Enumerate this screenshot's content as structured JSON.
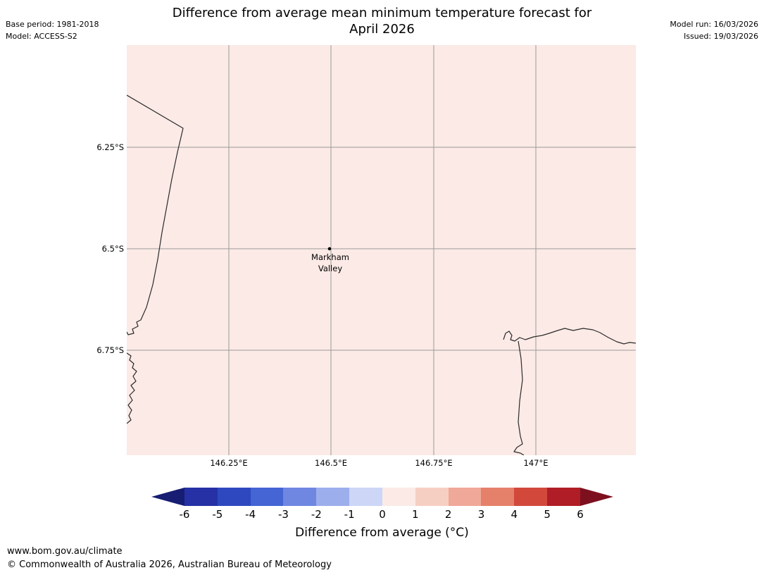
{
  "header": {
    "title_line1": "Difference from average mean minimum temperature forecast for",
    "title_line2": "April 2026",
    "base_period": "Base period: 1981-2018",
    "model": "Model: ACCESS-S2",
    "model_run": "Model run: 16/03/2026",
    "issued": "Issued: 19/03/2026"
  },
  "map": {
    "fill_color": "#fbeae6",
    "gridline_color": "#9b9b9b",
    "coastline_color": "#2b2b2b",
    "x_ticks": [
      "146.25°E",
      "146.5°E",
      "146.75°E",
      "147°E"
    ],
    "y_ticks": [
      "6.25°S",
      "6.5°S",
      "6.75°S"
    ],
    "marker": {
      "name": "Markham Valley",
      "label_line1": "Markham",
      "label_line2": "Valley"
    }
  },
  "colorbar": {
    "label": "Difference from average (°C)",
    "ticks": [
      "-6",
      "-5",
      "-4",
      "-3",
      "-2",
      "-1",
      "0",
      "1",
      "2",
      "3",
      "4",
      "5",
      "6"
    ],
    "cell_colors": [
      "#2531a5",
      "#2e49bf",
      "#4465d3",
      "#6f87e1",
      "#9daeec",
      "#cdd6f6",
      "#fbeae6",
      "#f6cfc3",
      "#f0a898",
      "#e5806b",
      "#d2493c",
      "#b11d26"
    ],
    "left_arrow_color": "#161d72",
    "right_arrow_color": "#7d101e"
  },
  "footer": {
    "url": "www.bom.gov.au/climate",
    "copyright": "© Commonwealth of Australia 2026, Australian Bureau of Meteorology"
  },
  "chart_data": {
    "type": "heatmap",
    "title": "Difference from average mean minimum temperature forecast for April 2026",
    "base_period": "1981-2018",
    "model": "ACCESS-S2",
    "model_run": "16/03/2026",
    "issued": "19/03/2026",
    "x_axis": {
      "label": "",
      "ticks": [
        "146.25°E",
        "146.5°E",
        "146.75°E",
        "147°E"
      ]
    },
    "y_axis": {
      "label": "",
      "ticks": [
        "6.25°S",
        "6.5°S",
        "6.75°S"
      ]
    },
    "colorbar": {
      "label": "Difference from average (°C)",
      "range": [
        -6,
        6
      ],
      "tick_values": [
        -6,
        -5,
        -4,
        -3,
        -2,
        -1,
        0,
        1,
        2,
        3,
        4,
        5,
        6
      ],
      "extend": "both"
    },
    "map_value": "entire visible region shaded in the 0 to 1 °C band (slightly above average)",
    "locations": [
      {
        "name": "Markham Valley",
        "approx_lon": "146.5°E",
        "approx_lat": "6.5°S"
      }
    ]
  }
}
